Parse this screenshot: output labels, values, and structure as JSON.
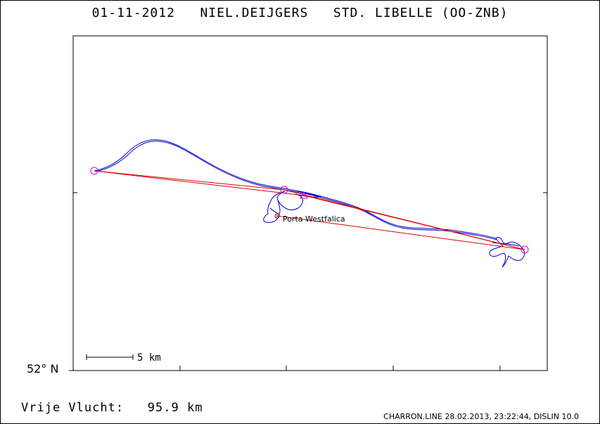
{
  "header": {
    "date": "01-11-2012",
    "pilot": "NIEL.DEIJGERS",
    "glider": "STD. LIBELLE (OO-ZNB)"
  },
  "map": {
    "latitude_label": "52° N",
    "scale_label": "5 km",
    "waypoint_label": "Porta Westfalica",
    "colors": {
      "track": "#0000cc",
      "route": "#dd0000",
      "turnpoint": "#dd00dd",
      "frame": "#000000"
    }
  },
  "footer": {
    "distance_label": "Vrije Vlucht:",
    "distance_value": "95.9 km",
    "credit": "CHARRON.LINE 28.02.2013, 23:22:44, DISLIN 10.0"
  }
}
